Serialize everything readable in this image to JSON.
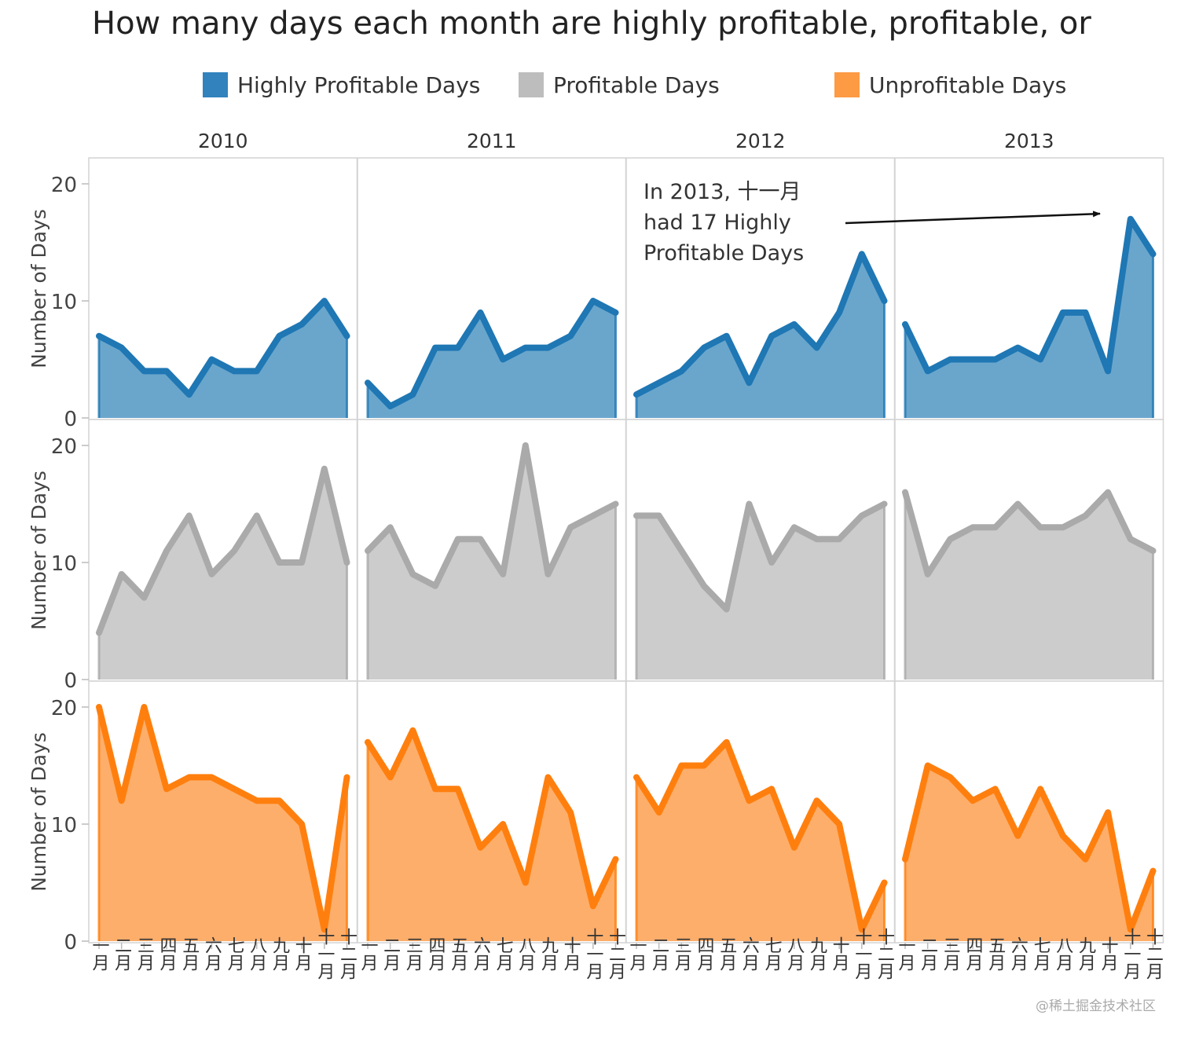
{
  "title": "How many days each month are highly profitable, profitable, or",
  "legend": {
    "items": [
      {
        "label": "Highly Profitable Days",
        "color": "#3182bd"
      },
      {
        "label": "Profitable Days",
        "color": "#bdbdbd"
      },
      {
        "label": "Unprofitable Days",
        "color": "#fd9a44"
      }
    ]
  },
  "annotation": {
    "lines": [
      "In 2013, 十一月",
      "had 17 Highly",
      "Profitable Days"
    ]
  },
  "watermark": "@稀土掘金技术社区",
  "colors": {
    "highly_line": "#1f77b4",
    "highly_fill": "#6aa6cc",
    "profitable_line": "#aaaaaa",
    "profitable_fill": "#cccccc",
    "unprofitable_line": "#ff7f0e",
    "unprofitable_fill": "#fdae6b",
    "panel_border": "#d3d3d3"
  },
  "chart_data": {
    "type": "area",
    "facet_columns": [
      "2010",
      "2011",
      "2012",
      "2013"
    ],
    "x_categories": [
      "一月",
      "二月",
      "三月",
      "四月",
      "五月",
      "六月",
      "七月",
      "八月",
      "九月",
      "十月",
      "十一月",
      "十二月"
    ],
    "ylabel": "Number of Days",
    "ylim": [
      0,
      22
    ],
    "yticks": [
      0,
      10,
      20
    ],
    "rows": [
      {
        "name": "Highly Profitable Days",
        "series": {
          "2010": [
            7,
            6,
            4,
            4,
            2,
            5,
            4,
            4,
            7,
            8,
            10,
            7
          ],
          "2011": [
            3,
            1,
            2,
            6,
            6,
            9,
            5,
            6,
            6,
            7,
            10,
            9
          ],
          "2012": [
            2,
            3,
            4,
            6,
            7,
            3,
            7,
            8,
            6,
            9,
            14,
            10
          ],
          "2013": [
            8,
            4,
            5,
            5,
            5,
            6,
            5,
            9,
            9,
            4,
            17,
            14
          ]
        }
      },
      {
        "name": "Profitable Days",
        "series": {
          "2010": [
            4,
            9,
            7,
            11,
            14,
            9,
            11,
            14,
            10,
            10,
            18,
            10
          ],
          "2011": [
            11,
            13,
            9,
            8,
            12,
            12,
            9,
            20,
            9,
            13,
            14,
            15
          ],
          "2012": [
            14,
            14,
            11,
            8,
            6,
            15,
            10,
            13,
            12,
            12,
            14,
            15
          ],
          "2013": [
            16,
            9,
            12,
            13,
            13,
            15,
            13,
            13,
            14,
            16,
            12,
            11
          ]
        }
      },
      {
        "name": "Unprofitable Days",
        "series": {
          "2010": [
            20,
            12,
            20,
            13,
            14,
            14,
            13,
            12,
            12,
            10,
            1,
            14
          ],
          "2011": [
            17,
            14,
            18,
            13,
            13,
            8,
            10,
            5,
            14,
            11,
            3,
            7
          ],
          "2012": [
            14,
            11,
            15,
            15,
            17,
            12,
            13,
            8,
            12,
            10,
            1,
            5
          ],
          "2013": [
            7,
            15,
            14,
            12,
            13,
            9,
            13,
            9,
            7,
            11,
            1,
            6
          ]
        }
      }
    ]
  }
}
